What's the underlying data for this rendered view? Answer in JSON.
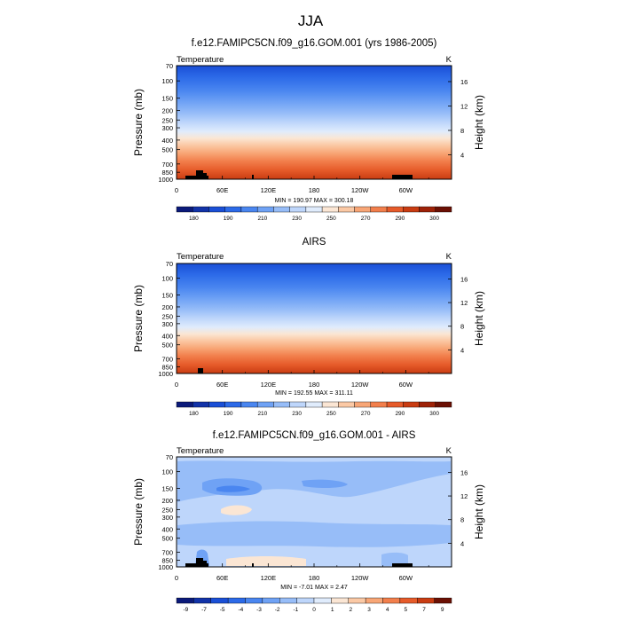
{
  "figure_title": "JJA",
  "chart_data": [
    {
      "type": "heatmap",
      "title": "f.e12.FAMIPC5CN.f09_g16.GOM.001 (yrs 1986-2005)",
      "left_string": "Temperature",
      "right_string": "K",
      "ylabel": "Pressure (mb)",
      "y2label": "Height (km)",
      "x_ticks": [
        "0",
        "60E",
        "120E",
        "180",
        "120W",
        "60W"
      ],
      "x_tick_values": [
        0,
        60,
        120,
        180,
        240,
        300
      ],
      "xlim": [
        0,
        360
      ],
      "y_ticks": [
        "70",
        "100",
        "150",
        "200",
        "250",
        "300",
        "400",
        "500",
        "700",
        "850",
        "1000"
      ],
      "y_tick_values": [
        70,
        100,
        150,
        200,
        250,
        300,
        400,
        500,
        700,
        850,
        1000
      ],
      "ylim": [
        70,
        1000
      ],
      "y2_ticks": [
        "16",
        "12",
        "8",
        "4"
      ],
      "y2_tick_values": [
        16,
        12,
        8,
        4
      ],
      "min_max_text": "MIN = 190.97  MAX = 300.18",
      "min": 190.97,
      "max": 300.18,
      "colorbar_labels": [
        "180",
        "190",
        "210",
        "230",
        "250",
        "270",
        "290",
        "300"
      ],
      "colorbar_levels": [
        175,
        180,
        185,
        190,
        200,
        210,
        220,
        230,
        240,
        250,
        260,
        270,
        280,
        290,
        295,
        300
      ],
      "colorbar_colors": [
        "#0b1a7a",
        "#1233a8",
        "#1a4fd6",
        "#2c6ae8",
        "#4a86f0",
        "#6fa2f5",
        "#97bdf8",
        "#bed6fb",
        "#e0ecfc",
        "#fbe6d4",
        "#fbc9a5",
        "#f8a676",
        "#f27f4c",
        "#e65b2a",
        "#c93c12",
        "#9e2208",
        "#6b1004"
      ]
    },
    {
      "type": "heatmap",
      "title": "AIRS",
      "left_string": "Temperature",
      "right_string": "K",
      "ylabel": "Pressure (mb)",
      "y2label": "Height (km)",
      "x_ticks": [
        "0",
        "60E",
        "120E",
        "180",
        "120W",
        "60W"
      ],
      "x_tick_values": [
        0,
        60,
        120,
        180,
        240,
        300
      ],
      "xlim": [
        0,
        360
      ],
      "y_ticks": [
        "70",
        "100",
        "150",
        "200",
        "250",
        "300",
        "400",
        "500",
        "700",
        "850",
        "1000"
      ],
      "y_tick_values": [
        70,
        100,
        150,
        200,
        250,
        300,
        400,
        500,
        700,
        850,
        1000
      ],
      "ylim": [
        70,
        1000
      ],
      "y2_ticks": [
        "16",
        "12",
        "8",
        "4"
      ],
      "y2_tick_values": [
        16,
        12,
        8,
        4
      ],
      "min_max_text": "MIN = 192.55  MAX = 311.11",
      "min": 192.55,
      "max": 311.11,
      "colorbar_labels": [
        "180",
        "190",
        "210",
        "230",
        "250",
        "270",
        "290",
        "300"
      ],
      "colorbar_levels": [
        175,
        180,
        185,
        190,
        200,
        210,
        220,
        230,
        240,
        250,
        260,
        270,
        280,
        290,
        295,
        300
      ],
      "colorbar_colors": [
        "#0b1a7a",
        "#1233a8",
        "#1a4fd6",
        "#2c6ae8",
        "#4a86f0",
        "#6fa2f5",
        "#97bdf8",
        "#bed6fb",
        "#e0ecfc",
        "#fbe6d4",
        "#fbc9a5",
        "#f8a676",
        "#f27f4c",
        "#e65b2a",
        "#c93c12",
        "#9e2208",
        "#6b1004"
      ]
    },
    {
      "type": "heatmap",
      "title": "f.e12.FAMIPC5CN.f09_g16.GOM.001 - AIRS",
      "left_string": "Temperature",
      "right_string": "K",
      "ylabel": "Pressure (mb)",
      "y2label": "Height (km)",
      "x_ticks": [
        "0",
        "60E",
        "120E",
        "180",
        "120W",
        "60W"
      ],
      "x_tick_values": [
        0,
        60,
        120,
        180,
        240,
        300
      ],
      "xlim": [
        0,
        360
      ],
      "y_ticks": [
        "70",
        "100",
        "150",
        "200",
        "250",
        "300",
        "400",
        "500",
        "700",
        "850",
        "1000"
      ],
      "y_tick_values": [
        70,
        100,
        150,
        200,
        250,
        300,
        400,
        500,
        700,
        850,
        1000
      ],
      "ylim": [
        70,
        1000
      ],
      "y2_ticks": [
        "16",
        "12",
        "8",
        "4"
      ],
      "y2_tick_values": [
        16,
        12,
        8,
        4
      ],
      "min_max_text": "MIN = -7.01  MAX =  2.47",
      "min": -7.01,
      "max": 2.47,
      "colorbar_labels": [
        "-9",
        "-7",
        "-5",
        "-4",
        "-3",
        "-2",
        "-1",
        "0",
        "1",
        "2",
        "3",
        "4",
        "5",
        "7",
        "9"
      ],
      "colorbar_levels": [
        -9,
        -7,
        -5,
        -4,
        -3,
        -2,
        -1,
        0,
        1,
        2,
        3,
        4,
        5,
        7,
        9
      ],
      "colorbar_colors": [
        "#0b1a7a",
        "#1233a8",
        "#1a4fd6",
        "#2c6ae8",
        "#4a86f0",
        "#6fa2f5",
        "#97bdf8",
        "#bed6fb",
        "#e0ecfc",
        "#fbe6d4",
        "#fbc9a5",
        "#f8a676",
        "#f27f4c",
        "#e65b2a",
        "#c93c12",
        "#6b1004"
      ]
    }
  ]
}
